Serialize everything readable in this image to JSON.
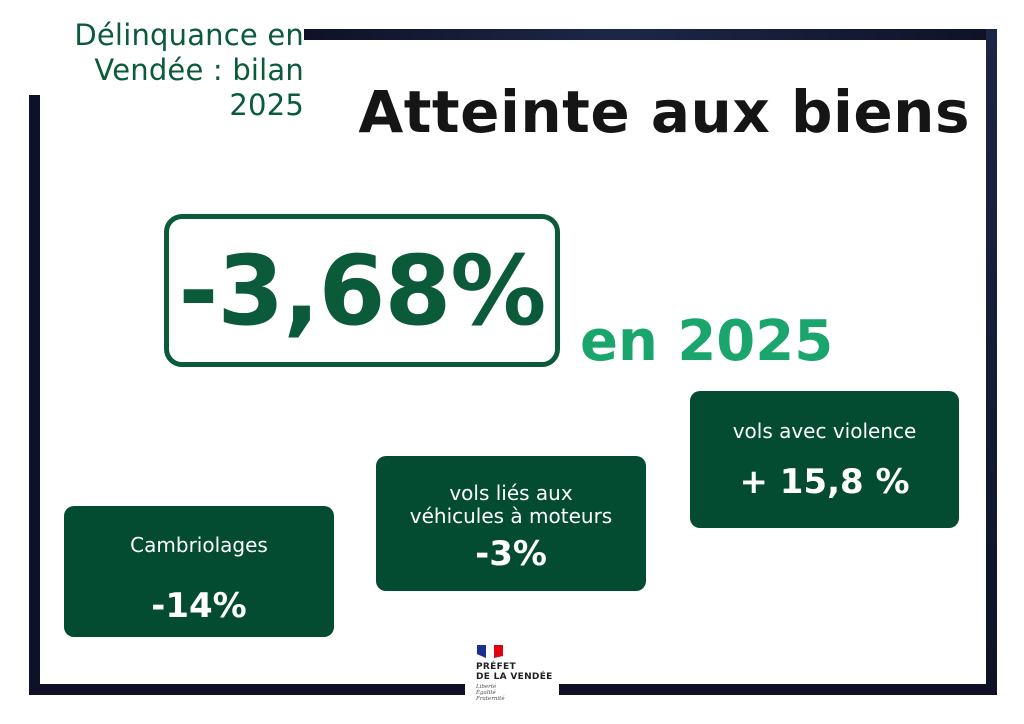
{
  "header": {
    "brand_title": "Délinquance en\nVendée : bilan 2025",
    "page_title": "Atteinte aux biens"
  },
  "headline": {
    "value": "-3,68%",
    "year_text": "en 2025"
  },
  "cards": [
    {
      "title": "Cambriolages",
      "value": "-14%"
    },
    {
      "title": "vols liés aux\nvéhicules à moteurs",
      "value": "-3%"
    },
    {
      "title": "vols avec violence",
      "value": "+ 15,8 %"
    }
  ],
  "footer": {
    "logo_line1": "PRÉFET",
    "logo_line2": "DE LA VENDÉE",
    "motto": [
      "Liberté",
      "Égalité",
      "Fraternité"
    ],
    "flag_colors": {
      "blue": "#1d2f8f",
      "white": "#ffffff",
      "red": "#e1000f"
    }
  },
  "colors": {
    "dark_green": "#034b31",
    "accent_green": "#19a56c",
    "text_dark": "#151515",
    "frame_navy": "#0f1226"
  }
}
